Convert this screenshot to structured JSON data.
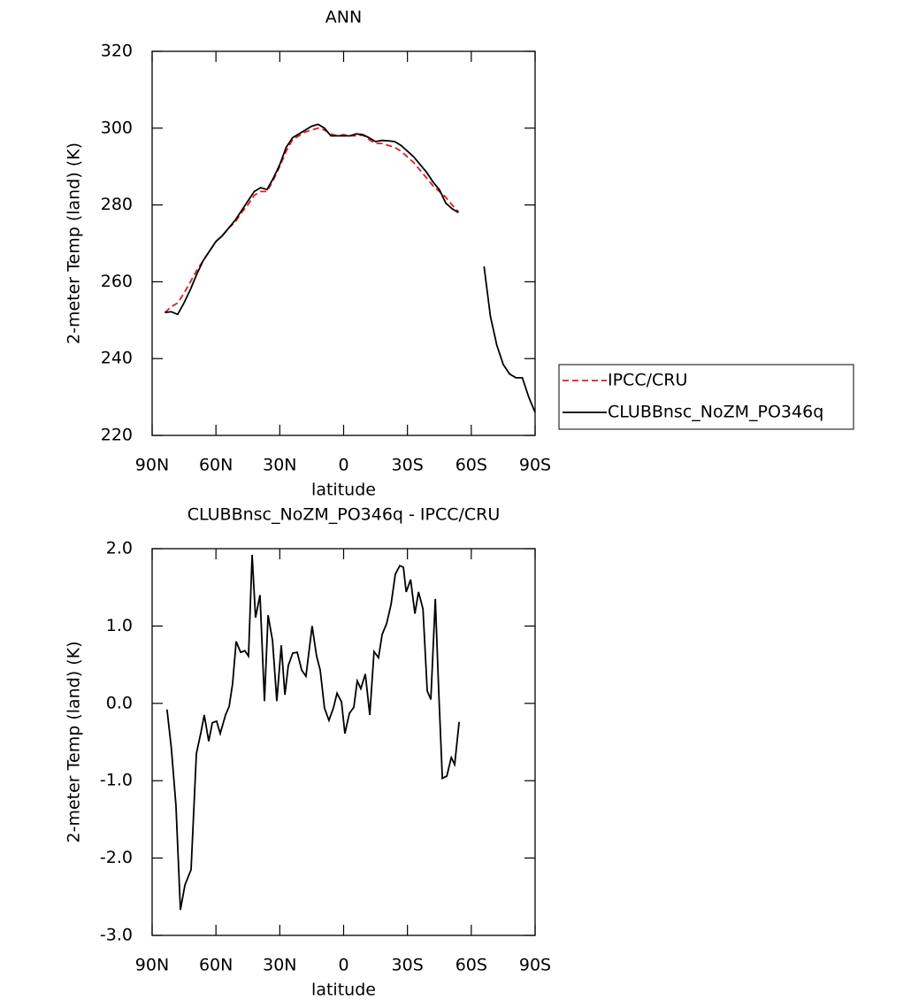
{
  "chart_data": [
    {
      "type": "line",
      "title": "ANN",
      "x_label": "latitude",
      "y_label": "2-meter Temp (land) (K)",
      "x": [
        84,
        81,
        78,
        75,
        72,
        69,
        66,
        63,
        60,
        57,
        54,
        51,
        48,
        45,
        42,
        39,
        36,
        33,
        30,
        27,
        24,
        21,
        18,
        15,
        12,
        9,
        6,
        3,
        0,
        -3,
        -6,
        -9,
        -12,
        -15,
        -18,
        -21,
        -24,
        -27,
        -30,
        -33,
        -36,
        -39,
        -42,
        -45,
        -48,
        -51,
        -54,
        -60,
        -66,
        -69,
        -72,
        -75,
        -78,
        -81,
        -84,
        -87,
        -90
      ],
      "series": [
        {
          "name": "IPCC/CRU",
          "color": "#e41a1c",
          "dashed": true,
          "values": [
            252,
            253.5,
            254.5,
            257,
            260,
            263,
            265.5,
            268,
            270.5,
            272,
            274,
            275.5,
            278,
            280,
            282.5,
            283.5,
            283.5,
            286.5,
            290,
            294,
            297,
            298,
            299,
            299.5,
            300,
            299.5,
            298.5,
            298,
            298.3,
            298,
            298,
            298.2,
            297,
            296,
            296,
            295.5,
            295,
            294,
            292.5,
            291,
            289,
            287,
            285,
            283.5,
            282,
            280,
            278.2,
            null,
            null,
            null,
            null,
            null,
            null,
            null,
            null,
            null,
            null
          ]
        },
        {
          "name": "CLUBBnsc_NoZM_PO346q",
          "color": "#000000",
          "dashed": false,
          "values": [
            252,
            252.2,
            251.5,
            254.5,
            258,
            262,
            265.5,
            268,
            270.5,
            272,
            274,
            276,
            278.5,
            281,
            283.5,
            284.5,
            284,
            287,
            290.5,
            295,
            297.5,
            298.5,
            299.5,
            300.5,
            301,
            300,
            298,
            298,
            298,
            298,
            298.5,
            298.3,
            297.5,
            296.5,
            296.8,
            296.7,
            296.5,
            295.5,
            294,
            292.5,
            290.5,
            288.5,
            286,
            284,
            280.5,
            279,
            278,
            null,
            264,
            251,
            243.5,
            238.5,
            236,
            235,
            235,
            230,
            226
          ]
        }
      ],
      "xlim": [
        90,
        -90
      ],
      "xticks": [
        {
          "value": 90,
          "label": "90N"
        },
        {
          "value": 60,
          "label": "60N"
        },
        {
          "value": 30,
          "label": "30N"
        },
        0,
        {
          "value": -30,
          "label": "30S"
        },
        {
          "value": -60,
          "label": "60S"
        },
        {
          "value": -90,
          "label": "90S"
        }
      ],
      "ylim": [
        220,
        320
      ],
      "yticks": [
        220,
        240,
        260,
        280,
        300,
        320
      ],
      "legend": "right"
    },
    {
      "type": "line",
      "title": "CLUBBnsc_NoZM_PO346q - IPCC/CRU",
      "x_label": "latitude",
      "y_label": "2-meter Temp (land) (K)",
      "x": [
        83,
        81,
        78.8,
        76.7,
        74.6,
        71.7,
        69.2,
        67.1,
        65.5,
        63.4,
        61.7,
        59.7,
        58,
        55.5,
        53.8,
        52.2,
        50.5,
        48.4,
        46.4,
        44.7,
        43,
        41.4,
        39.3,
        37.2,
        35.5,
        33.4,
        31.4,
        29.3,
        27.6,
        26,
        23.9,
        21.8,
        19.7,
        17.7,
        14.8,
        12.7,
        11,
        9,
        6.9,
        4.8,
        3.1,
        1,
        -0.6,
        -2.7,
        -4.8,
        -6.4,
        -8.1,
        -10.2,
        -12.3,
        -14.3,
        -16.4,
        -18.1,
        -20.2,
        -22.3,
        -24.3,
        -26.4,
        -28.1,
        -29.4,
        -31.5,
        -33.5,
        -35.2,
        -37.3,
        -39.3,
        -41,
        -43.1,
        -44.7,
        -46.4,
        -48.5,
        -50.6,
        -52.2,
        -54.3
      ],
      "series": [
        {
          "name": "CLUBBnsc_NoZM_PO346q - IPCC/CRU",
          "color": "#000000",
          "dashed": false,
          "values": [
            -0.08,
            -0.57,
            -1.32,
            -2.67,
            -2.35,
            -2.15,
            -0.65,
            -0.38,
            -0.15,
            -0.49,
            -0.25,
            -0.23,
            -0.39,
            -0.15,
            -0.04,
            0.25,
            0.8,
            0.66,
            0.68,
            0.61,
            1.92,
            1.11,
            1.4,
            0.03,
            1.14,
            0.81,
            0.03,
            0.75,
            0.11,
            0.49,
            0.65,
            0.66,
            0.43,
            0.35,
            1.0,
            0.61,
            0.43,
            -0.06,
            -0.22,
            -0.06,
            0.13,
            0.02,
            -0.39,
            -0.13,
            -0.05,
            0.29,
            0.19,
            0.38,
            -0.15,
            0.67,
            0.59,
            0.89,
            1.03,
            1.28,
            1.67,
            1.78,
            1.76,
            1.44,
            1.6,
            1.16,
            1.44,
            1.22,
            0.16,
            0.05,
            1.35,
            0.16,
            -0.97,
            -0.94,
            -0.7,
            -0.79,
            -0.24
          ]
        }
      ],
      "xlim": [
        90,
        -90
      ],
      "xticks": [
        {
          "value": 90,
          "label": "90N"
        },
        {
          "value": 60,
          "label": "60N"
        },
        {
          "value": 30,
          "label": "30N"
        },
        0,
        {
          "value": -30,
          "label": "30S"
        },
        {
          "value": -60,
          "label": "60S"
        },
        {
          "value": -90,
          "label": "90S"
        }
      ],
      "ylim": [
        -3,
        2
      ],
      "yticks": [
        {
          "value": -3,
          "label": "-3.0"
        },
        {
          "value": -2,
          "label": "-2.0"
        },
        {
          "value": -1,
          "label": "-1.0"
        },
        {
          "value": 0,
          "label": "0.0"
        },
        {
          "value": 1,
          "label": "1.0"
        },
        {
          "value": 2,
          "label": "2.0"
        }
      ]
    }
  ]
}
